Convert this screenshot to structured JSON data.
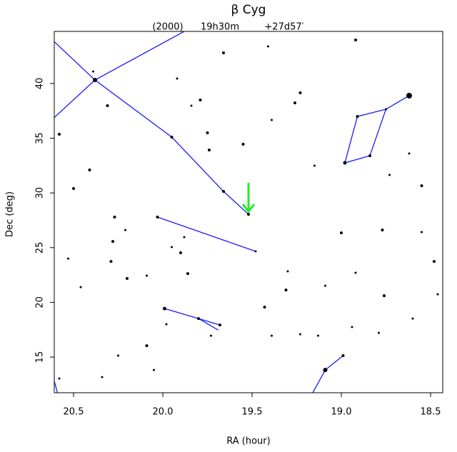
{
  "chart_data": {
    "type": "scatter",
    "title": "β Cyg",
    "subtitle": [
      "(2000)",
      "19h30m",
      "+27d57′"
    ],
    "x_label": "RA (hour)",
    "y_label": "Dec (deg)",
    "xlim": [
      20.608,
      18.432
    ],
    "ylim": [
      11.74,
      44.76
    ],
    "xticks": [
      20.5,
      {
        "value": 20,
        "label": "20.0"
      },
      19.5,
      {
        "value": 19,
        "label": "19.0"
      },
      18.5
    ],
    "yticks": [
      15,
      20,
      25,
      30,
      35,
      40
    ],
    "color": "#000000",
    "x": [
      20.38,
      18.62,
      19.52,
      19.95,
      19.66,
      20.03,
      19.48,
      19.99,
      19.8,
      19.68,
      19.09,
      18.99,
      18.98,
      18.84,
      18.91,
      18.75,
      20.39,
      20.31,
      20.58,
      20.5,
      20.41,
      20.27,
      20.28,
      20.29,
      20.2,
      20.09,
      20.25,
      19.88,
      19.86,
      19.75,
      19.55,
      19.39,
      19.23,
      19.66,
      19.41,
      18.92,
      19.26,
      19.15,
      18.55,
      18.62,
      18.55,
      18.48,
      18.77,
      19.0,
      18.92,
      18.76,
      18.6,
      19.13,
      19.31,
      19.43,
      19.3,
      19.39,
      19.73,
      19.98,
      20.05,
      20.34,
      20.58,
      20.46,
      20.53,
      19.9,
      19.95,
      20.09,
      20.21,
      19.74,
      19.92,
      19.79,
      19.84,
      19.09,
      18.94,
      18.73,
      18.46,
      19.23,
      18.79
    ],
    "y": [
      40.32,
      38.89,
      28.05,
      35.1,
      30.14,
      27.79,
      24.66,
      19.43,
      18.52,
      17.93,
      13.82,
      15.13,
      32.75,
      33.4,
      36.99,
      37.65,
      41.1,
      37.97,
      35.36,
      30.4,
      32.1,
      27.79,
      25.57,
      23.74,
      22.18,
      16.04,
      15.13,
      25.96,
      22.63,
      35.49,
      34.45,
      36.67,
      39.15,
      42.8,
      43.39,
      43.98,
      38.23,
      32.49,
      30.66,
      33.6,
      26.42,
      23.74,
      26.61,
      26.35,
      22.7,
      20.61,
      18.52,
      16.95,
      21.13,
      19.56,
      22.83,
      16.95,
      16.95,
      18.0,
      13.82,
      13.17,
      13.04,
      21.39,
      24.0,
      24.53,
      25.05,
      22.44,
      26.61,
      33.92,
      40.45,
      38.49,
      37.97,
      21.52,
      17.74,
      31.64,
      20.74,
      17.08,
      17.21
    ],
    "sizes": [
      3,
      4,
      2,
      2,
      2,
      2,
      1.5,
      2.5,
      2,
      2,
      3,
      2,
      2.5,
      2,
      2,
      1.5,
      1.5,
      2,
      2,
      2,
      2,
      2,
      2,
      2,
      2,
      2,
      1.5,
      1.5,
      2,
      2,
      2,
      1.5,
      2,
      2,
      1.5,
      2,
      2,
      1.5,
      2,
      1.5,
      1.5,
      2,
      2,
      2,
      1.5,
      2,
      1.5,
      1.5,
      2,
      2,
      1.5,
      1.5,
      1.5,
      1.5,
      1.5,
      1.5,
      1.5,
      1.5,
      1.5,
      2,
      1.5,
      1.5,
      1.5,
      2,
      1.5,
      2,
      1.5,
      1.5,
      1.5,
      1.5,
      1.5,
      1.5,
      1.5
    ],
    "lines": [
      {
        "color": "#1a1aff",
        "x": [
          20.61,
          20.38,
          19.95,
          19.66,
          19.52
        ],
        "y": [
          43.85,
          40.32,
          35.1,
          30.14,
          28.05
        ]
      },
      {
        "color": "#1a1aff",
        "x": [
          20.61,
          20.38,
          19.88
        ],
        "y": [
          36.86,
          40.32,
          44.76
        ]
      },
      {
        "color": "#1a1aff",
        "x": [
          20.03,
          19.48
        ],
        "y": [
          27.79,
          24.66
        ]
      },
      {
        "color": "#1a1aff",
        "x": [
          19.99,
          19.8,
          19.68
        ],
        "y": [
          19.43,
          18.52,
          17.93
        ]
      },
      {
        "color": "#1a1aff",
        "x": [
          19.8,
          19.69
        ],
        "y": [
          18.52,
          17.47
        ]
      },
      {
        "color": "#1a1aff",
        "x": [
          20.61,
          20.59
        ],
        "y": [
          12.91,
          11.74
        ]
      },
      {
        "color": "#1a1aff",
        "x": [
          19.16,
          19.09,
          18.99
        ],
        "y": [
          11.74,
          13.82,
          15.13
        ]
      },
      {
        "color": "#1a1aff",
        "x": [
          18.62,
          18.75,
          18.84,
          18.98,
          18.91,
          18.75
        ],
        "y": [
          38.89,
          37.65,
          33.4,
          32.75,
          36.99,
          37.65
        ]
      }
    ],
    "marker": {
      "x": 19.52,
      "y": 28.05,
      "color": "#22ee22"
    }
  }
}
